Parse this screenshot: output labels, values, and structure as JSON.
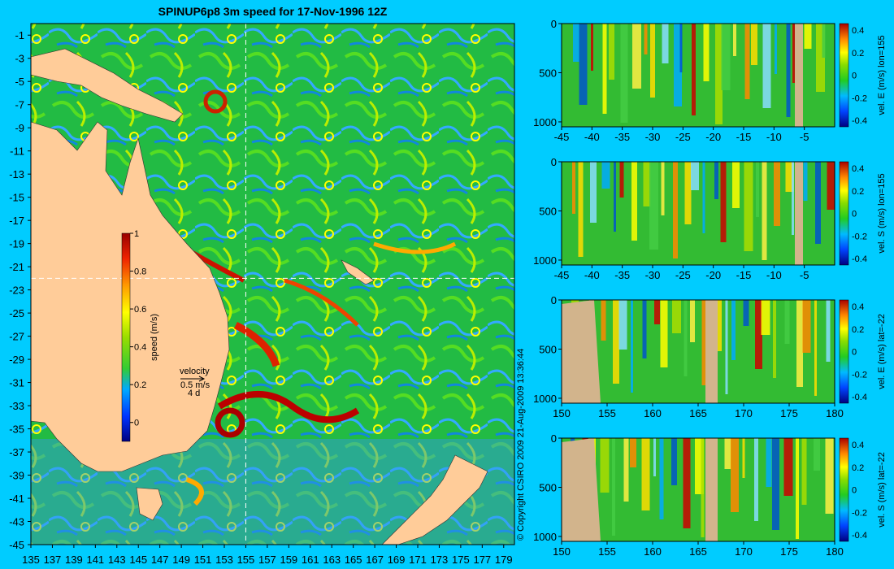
{
  "title": "SPINUP6p8 3m speed for 17-Nov-1996 12Z",
  "copyright": "© Copyright CSIRO 2009   21-Aug-2009 13:36:44",
  "velocity_legend": {
    "label": "velocity",
    "scale": "0.5 m/s",
    "period": "4 d"
  },
  "colors": {
    "background": "#00ccff",
    "land": "#ffcc99",
    "section_land": "#d2b48c"
  },
  "chart_data": [
    {
      "type": "heatmap",
      "name": "map",
      "title": "SPINUP6p8 3m speed for 17-Nov-1996 12Z",
      "x_ticks": [
        "135",
        "137",
        "139",
        "141",
        "143",
        "145",
        "147",
        "149",
        "151",
        "153",
        "155",
        "157",
        "159",
        "161",
        "163",
        "165",
        "167",
        "169",
        "171",
        "173",
        "175",
        "177",
        "179"
      ],
      "y_ticks": [
        "-1",
        "-3",
        "-5",
        "-7",
        "-9",
        "-11",
        "-13",
        "-15",
        "-17",
        "-19",
        "-21",
        "-23",
        "-25",
        "-27",
        "-29",
        "-31",
        "-33",
        "-35",
        "-37",
        "-39",
        "-41",
        "-43",
        "-45"
      ],
      "xlim": [
        135,
        180
      ],
      "ylim": [
        -45,
        0
      ],
      "grid_lines": {
        "lon": 155,
        "lat": -22
      },
      "colorbar": {
        "label": "speed (m/s)",
        "ticks": [
          "1",
          "0.8",
          "0.6",
          "0.4",
          "0.2",
          "0"
        ],
        "range": [
          -0.1,
          1
        ]
      }
    },
    {
      "type": "heatmap",
      "name": "section-1",
      "x_ticks": [
        "-45",
        "-40",
        "-35",
        "-30",
        "-25",
        "-20",
        "-15",
        "-10",
        "-5"
      ],
      "y_ticks": [
        "0",
        "500",
        "1000"
      ],
      "xlim": [
        -45,
        0
      ],
      "ylim": [
        1050,
        0
      ],
      "colorbar": {
        "label": "vel. E (m/s)  lon=155",
        "ticks": [
          "0.4",
          "0.2",
          "0",
          "-0.2",
          "-0.4"
        ]
      }
    },
    {
      "type": "heatmap",
      "name": "section-2",
      "x_ticks": [
        "-45",
        "-40",
        "-35",
        "-30",
        "-25",
        "-20",
        "-15",
        "-10",
        "-5"
      ],
      "y_ticks": [
        "0",
        "500",
        "1000"
      ],
      "xlim": [
        -45,
        0
      ],
      "ylim": [
        1050,
        0
      ],
      "colorbar": {
        "label": "vel. S (m/s)  lon=155",
        "ticks": [
          "0.4",
          "0.2",
          "0",
          "-0.2",
          "-0.4"
        ]
      }
    },
    {
      "type": "heatmap",
      "name": "section-3",
      "x_ticks": [
        "150",
        "155",
        "160",
        "165",
        "170",
        "175",
        "180"
      ],
      "y_ticks": [
        "0",
        "500",
        "1000"
      ],
      "xlim": [
        150,
        180
      ],
      "ylim": [
        1050,
        0
      ],
      "colorbar": {
        "label": "vel. E (m/s)  lat=-22",
        "ticks": [
          "0.4",
          "0.2",
          "0",
          "-0.2",
          "-0.4"
        ]
      }
    },
    {
      "type": "heatmap",
      "name": "section-4",
      "x_ticks": [
        "150",
        "155",
        "160",
        "165",
        "170",
        "175",
        "180"
      ],
      "y_ticks": [
        "0",
        "500",
        "1000"
      ],
      "xlim": [
        150,
        180
      ],
      "ylim": [
        1050,
        0
      ],
      "colorbar": {
        "label": "vel. S (m/s)  lat=-22",
        "ticks": [
          "0.4",
          "0.2",
          "0",
          "-0.2",
          "-0.4"
        ]
      }
    }
  ]
}
